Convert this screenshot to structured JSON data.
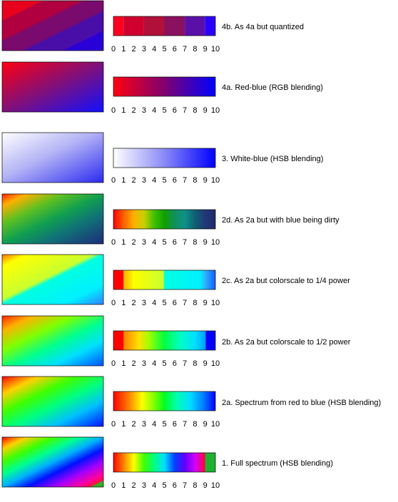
{
  "scale": {
    "min": 0,
    "max": 10,
    "ticks": [
      "0",
      "1",
      "2",
      "3",
      "4",
      "5",
      "6",
      "7",
      "8",
      "9",
      "10"
    ]
  },
  "panels": [
    {
      "id": "4b",
      "caption": "4b. As 4a but quantized",
      "scheme": "red-blue-quantized"
    },
    {
      "id": "4a",
      "caption": "4a. Red-blue (RGB blending)",
      "scheme": "red-blue"
    },
    {
      "id": "3",
      "caption": "3. White-blue (HSB blending)",
      "scheme": "white-blue"
    },
    {
      "id": "2d",
      "caption": "2d. As 2a but with blue being dirty",
      "scheme": "spectrum-dirty-blue"
    },
    {
      "id": "2c",
      "caption": "2c. As 2a but colorscale to 1/4 power",
      "scheme": "spectrum-quarter-power"
    },
    {
      "id": "2b",
      "caption": "2b. As 2a but colorscale to 1/2 power",
      "scheme": "spectrum-half-power"
    },
    {
      "id": "2a",
      "caption": "2a. Spectrum from red to blue (HSB blending)",
      "scheme": "spectrum"
    },
    {
      "id": "1",
      "caption": "1. Full spectrum (HSB blending)",
      "scheme": "full-spectrum"
    }
  ]
}
